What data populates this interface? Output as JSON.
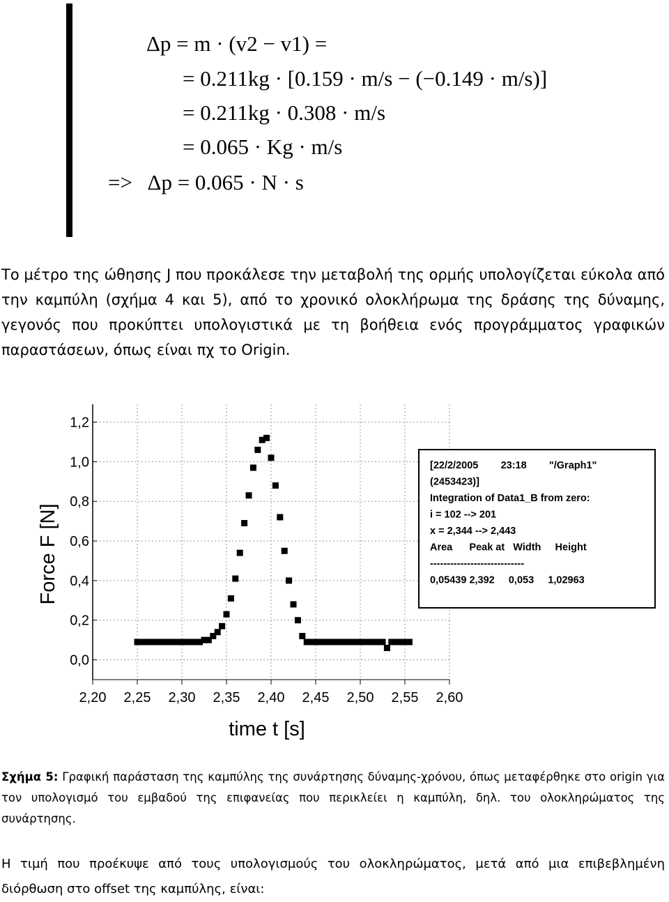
{
  "equations": [
    "Δp = m · (v2 − v1) =",
    "= 0.211kg · [0.159 · m/s − (−0.149 · m/s)]",
    "= 0.211kg · 0.308 · m/s",
    "= 0.065 · Kg · m/s",
    "=>   Δp = 0.065 · N · s"
  ],
  "paragraph": "Το μέτρο της ώθησης J που προκάλεσε την μεταβολή της ορμής υπολογίζεται εύκολα από την καμπύλη (σχήμα 4 και 5), από το χρονικό ολοκλήρωμα της δράσης της δύναμης, γεγονός που προκύπτει υπολογιστικά με τη βοήθεια ενός προγράμματος γραφικών παραστάσεων, όπως είναι πχ το Origin.",
  "chart_data": {
    "type": "scatter",
    "x_label": "time   t  [s]",
    "y_label": "Force  F  [N]",
    "xlim": [
      2.2,
      2.6
    ],
    "ylim": [
      -0.1,
      1.29
    ],
    "xticks": [
      {
        "value": 2.2,
        "label": "2,20"
      },
      {
        "value": 2.25,
        "label": "2,25"
      },
      {
        "value": 2.3,
        "label": "2,30"
      },
      {
        "value": 2.35,
        "label": "2,35"
      },
      {
        "value": 2.4,
        "label": "2,40"
      },
      {
        "value": 2.45,
        "label": "2,45"
      },
      {
        "value": 2.5,
        "label": "2,50"
      },
      {
        "value": 2.55,
        "label": "2,55"
      },
      {
        "value": 2.6,
        "label": "2,60"
      }
    ],
    "yticks": [
      {
        "value": 0,
        "label": "0,0"
      },
      {
        "value": 0.2,
        "label": "0,2"
      },
      {
        "value": 0.4,
        "label": "0,4"
      },
      {
        "value": 0.6,
        "label": "0,6"
      },
      {
        "value": 0.8,
        "label": "0,8"
      },
      {
        "value": 1.0,
        "label": "1,0"
      },
      {
        "value": 1.2,
        "label": "1,2"
      }
    ],
    "grid": true,
    "color": "#000000",
    "x": [
      2.25,
      2.255,
      2.26,
      2.265,
      2.27,
      2.275,
      2.28,
      2.285,
      2.29,
      2.295,
      2.3,
      2.305,
      2.31,
      2.315,
      2.32,
      2.325,
      2.33,
      2.335,
      2.34,
      2.345,
      2.35,
      2.355,
      2.36,
      2.365,
      2.37,
      2.375,
      2.38,
      2.385,
      2.39,
      2.395,
      2.4,
      2.405,
      2.41,
      2.415,
      2.42,
      2.425,
      2.43,
      2.435,
      2.44,
      2.445,
      2.45,
      2.455,
      2.46,
      2.465,
      2.47,
      2.475,
      2.48,
      2.485,
      2.49,
      2.495,
      2.5,
      2.505,
      2.51,
      2.515,
      2.52,
      2.525,
      2.53,
      2.535,
      2.54,
      2.545,
      2.55,
      2.555
    ],
    "values": [
      0.09,
      0.09,
      0.09,
      0.09,
      0.09,
      0.09,
      0.09,
      0.09,
      0.09,
      0.09,
      0.09,
      0.09,
      0.09,
      0.09,
      0.09,
      0.1,
      0.1,
      0.12,
      0.14,
      0.17,
      0.23,
      0.31,
      0.41,
      0.54,
      0.69,
      0.83,
      0.97,
      1.06,
      1.11,
      1.12,
      1.02,
      0.88,
      0.72,
      0.55,
      0.4,
      0.28,
      0.2,
      0.12,
      0.09,
      0.09,
      0.09,
      0.09,
      0.09,
      0.09,
      0.09,
      0.09,
      0.09,
      0.09,
      0.09,
      0.09,
      0.09,
      0.09,
      0.09,
      0.09,
      0.09,
      0.09,
      0.06,
      0.09,
      0.09,
      0.09,
      0.09,
      0.09
    ],
    "annotation": [
      "[22/2/2005        23:18        \"/Graph1\"",
      "(2453423)]",
      "Integration of Data1_B from zero:",
      "i = 102 --> 201",
      "x = 2,344 --> 2,443",
      "Area      Peak at   Width     Height",
      "----------------------------",
      "0,05439 2,392     0,053     1,02963"
    ]
  },
  "caption": {
    "label": "Σχήμα 5:",
    "text": "Γραφική παράσταση της καμπύλης της συνάρτησης δύναμης-χρόνου, όπως μεταφέρθηκε στο origin για τον υπολογισμό του εμβαδού της επιφανείας που περικλείει η καμπύλη, δηλ. του ολοκληρώματος της συνάρτησης."
  },
  "closing": "Η τιμή που προέκυψε από τους υπολογισμούς του ολοκληρώματος, μετά από μια επιβεβλημένη διόρθωση στο offset της καμπύλης, είναι:"
}
